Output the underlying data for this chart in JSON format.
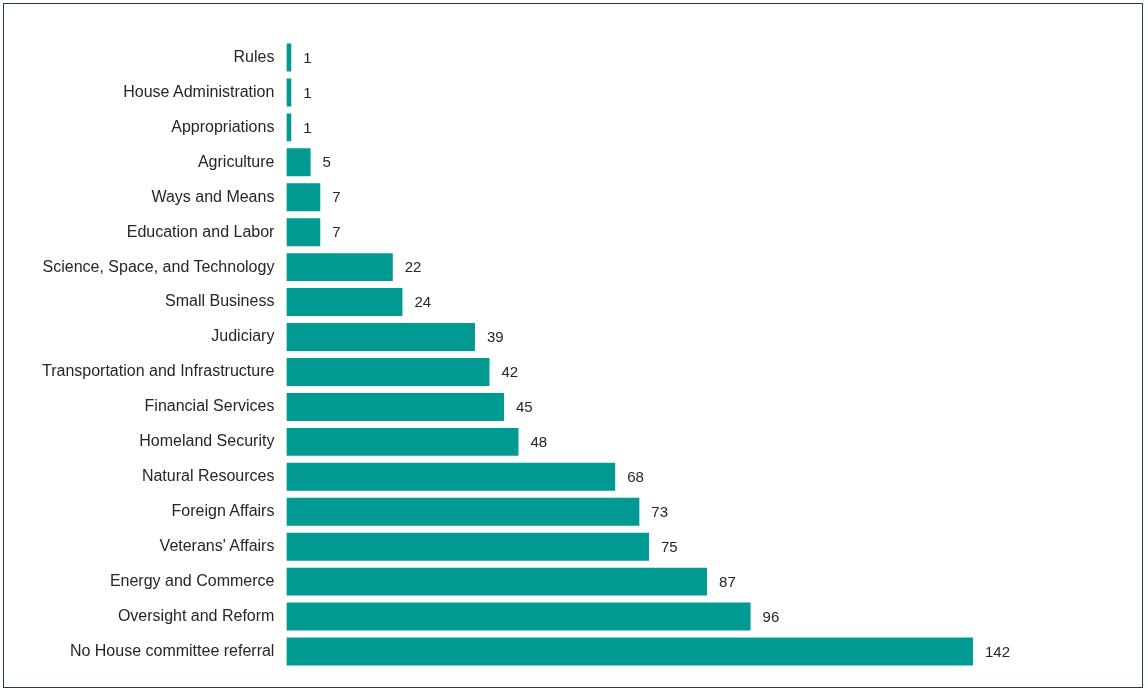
{
  "chart_data": {
    "type": "bar",
    "orientation": "horizontal",
    "categories": [
      "Rules",
      "House Administration",
      "Appropriations",
      "Agriculture",
      "Ways and Means",
      "Education and Labor",
      "Science, Space, and Technology",
      "Small Business",
      "Judiciary",
      "Transportation and Infrastructure",
      "Financial Services",
      "Homeland Security",
      "Natural Resources",
      "Foreign Affairs",
      "Veterans' Affairs",
      "Energy and Commerce",
      "Oversight and Reform",
      "No House committee referral"
    ],
    "values": [
      1,
      1,
      1,
      5,
      7,
      7,
      22,
      24,
      39,
      42,
      45,
      48,
      68,
      73,
      75,
      87,
      96,
      142
    ],
    "color": "#009a93",
    "data_labels": true,
    "grid": false,
    "legend": false,
    "tick_labels": "y"
  }
}
